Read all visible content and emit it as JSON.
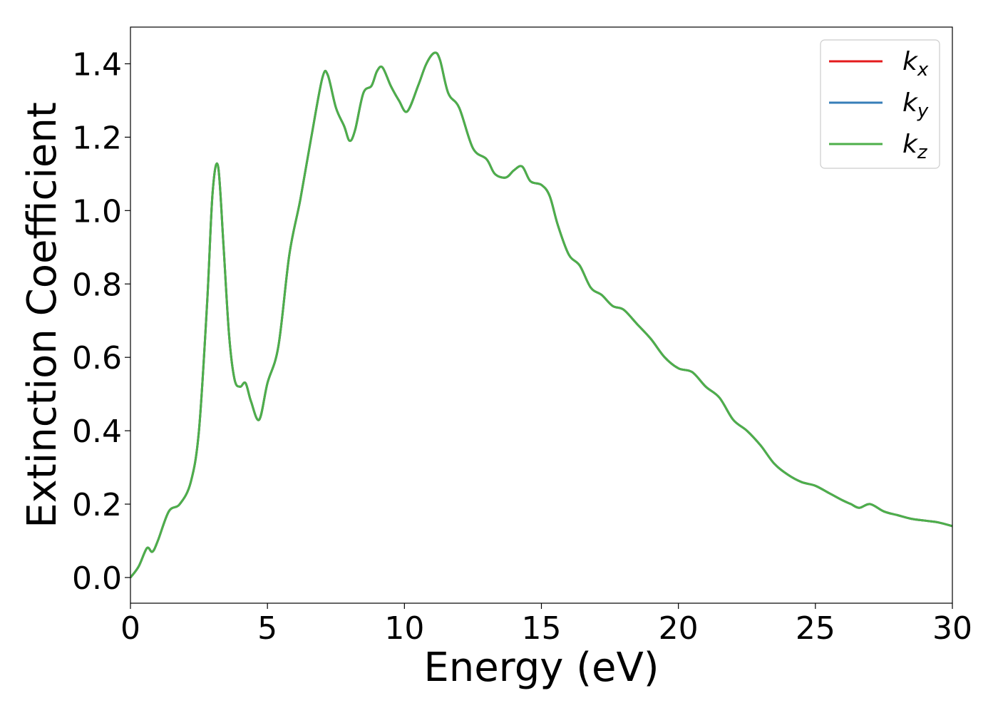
{
  "chart_data": {
    "type": "line",
    "title": "",
    "xlabel": "Energy (eV)",
    "ylabel": "Extinction Coefficient",
    "xlim": [
      0,
      30
    ],
    "ylim": [
      -0.07,
      1.5
    ],
    "xticks": [
      0,
      5,
      10,
      15,
      20,
      25,
      30
    ],
    "xtick_labels": [
      "0",
      "5",
      "10",
      "15",
      "20",
      "25",
      "30"
    ],
    "yticks": [
      0.0,
      0.2,
      0.4,
      0.6,
      0.8,
      1.0,
      1.2,
      1.4
    ],
    "ytick_labels": [
      "0.0",
      "0.2",
      "0.4",
      "0.6",
      "0.8",
      "1.0",
      "1.2",
      "1.4"
    ],
    "grid": false,
    "legend_position": "top-right",
    "x": [
      0,
      0.3,
      0.6,
      0.8,
      1.0,
      1.4,
      1.8,
      2.2,
      2.5,
      2.8,
      3.0,
      3.2,
      3.4,
      3.6,
      3.8,
      4.0,
      4.2,
      4.4,
      4.7,
      5.0,
      5.4,
      5.8,
      6.2,
      6.6,
      7.0,
      7.2,
      7.5,
      7.8,
      8.0,
      8.2,
      8.5,
      8.8,
      9.0,
      9.2,
      9.5,
      9.8,
      10.1,
      10.5,
      10.8,
      11.1,
      11.3,
      11.6,
      12.0,
      12.5,
      13.0,
      13.3,
      13.7,
      14.0,
      14.3,
      14.6,
      15.0,
      15.3,
      15.6,
      16.0,
      16.4,
      16.8,
      17.2,
      17.6,
      18.0,
      18.5,
      19.0,
      19.5,
      20.0,
      20.5,
      21.0,
      21.5,
      22.0,
      22.5,
      23.0,
      23.5,
      24.0,
      24.5,
      25.0,
      25.5,
      26.0,
      26.3,
      26.6,
      27.0,
      27.5,
      28.0,
      28.5,
      29.0,
      29.5,
      30.0
    ],
    "series": [
      {
        "name": "k_x",
        "color": "#e41a1c",
        "values": [
          0.0,
          0.03,
          0.08,
          0.07,
          0.1,
          0.18,
          0.2,
          0.26,
          0.4,
          0.75,
          1.05,
          1.12,
          0.9,
          0.66,
          0.54,
          0.52,
          0.53,
          0.48,
          0.43,
          0.53,
          0.63,
          0.88,
          1.03,
          1.2,
          1.36,
          1.37,
          1.28,
          1.23,
          1.19,
          1.22,
          1.32,
          1.34,
          1.38,
          1.39,
          1.34,
          1.3,
          1.27,
          1.34,
          1.4,
          1.43,
          1.41,
          1.32,
          1.28,
          1.17,
          1.14,
          1.1,
          1.09,
          1.11,
          1.12,
          1.08,
          1.07,
          1.04,
          0.96,
          0.88,
          0.85,
          0.79,
          0.77,
          0.74,
          0.73,
          0.69,
          0.65,
          0.6,
          0.57,
          0.56,
          0.52,
          0.49,
          0.43,
          0.4,
          0.36,
          0.31,
          0.28,
          0.26,
          0.25,
          0.23,
          0.21,
          0.2,
          0.19,
          0.2,
          0.18,
          0.17,
          0.16,
          0.155,
          0.15,
          0.14
        ]
      },
      {
        "name": "k_y",
        "color": "#377eb8",
        "values": [
          0.0,
          0.03,
          0.08,
          0.07,
          0.1,
          0.18,
          0.2,
          0.26,
          0.4,
          0.75,
          1.05,
          1.12,
          0.9,
          0.66,
          0.54,
          0.52,
          0.53,
          0.48,
          0.43,
          0.53,
          0.63,
          0.88,
          1.03,
          1.2,
          1.36,
          1.37,
          1.28,
          1.23,
          1.19,
          1.22,
          1.32,
          1.34,
          1.38,
          1.39,
          1.34,
          1.3,
          1.27,
          1.34,
          1.4,
          1.43,
          1.41,
          1.32,
          1.28,
          1.17,
          1.14,
          1.1,
          1.09,
          1.11,
          1.12,
          1.08,
          1.07,
          1.04,
          0.96,
          0.88,
          0.85,
          0.79,
          0.77,
          0.74,
          0.73,
          0.69,
          0.65,
          0.6,
          0.57,
          0.56,
          0.52,
          0.49,
          0.43,
          0.4,
          0.36,
          0.31,
          0.28,
          0.26,
          0.25,
          0.23,
          0.21,
          0.2,
          0.19,
          0.2,
          0.18,
          0.17,
          0.16,
          0.155,
          0.15,
          0.14
        ]
      },
      {
        "name": "k_z",
        "color": "#4daf4a",
        "values": [
          0.0,
          0.03,
          0.08,
          0.07,
          0.1,
          0.18,
          0.2,
          0.26,
          0.4,
          0.75,
          1.05,
          1.12,
          0.9,
          0.66,
          0.54,
          0.52,
          0.53,
          0.48,
          0.43,
          0.53,
          0.63,
          0.88,
          1.03,
          1.2,
          1.36,
          1.37,
          1.28,
          1.23,
          1.19,
          1.22,
          1.32,
          1.34,
          1.38,
          1.39,
          1.34,
          1.3,
          1.27,
          1.34,
          1.4,
          1.43,
          1.41,
          1.32,
          1.28,
          1.17,
          1.14,
          1.1,
          1.09,
          1.11,
          1.12,
          1.08,
          1.07,
          1.04,
          0.96,
          0.88,
          0.85,
          0.79,
          0.77,
          0.74,
          0.73,
          0.69,
          0.65,
          0.6,
          0.57,
          0.56,
          0.52,
          0.49,
          0.43,
          0.4,
          0.36,
          0.31,
          0.28,
          0.26,
          0.25,
          0.23,
          0.21,
          0.2,
          0.19,
          0.2,
          0.18,
          0.17,
          0.16,
          0.155,
          0.15,
          0.14
        ]
      }
    ],
    "legend": [
      {
        "base": "k",
        "sub": "x",
        "color": "#e41a1c"
      },
      {
        "base": "k",
        "sub": "y",
        "color": "#377eb8"
      },
      {
        "base": "k",
        "sub": "z",
        "color": "#4daf4a"
      }
    ]
  }
}
